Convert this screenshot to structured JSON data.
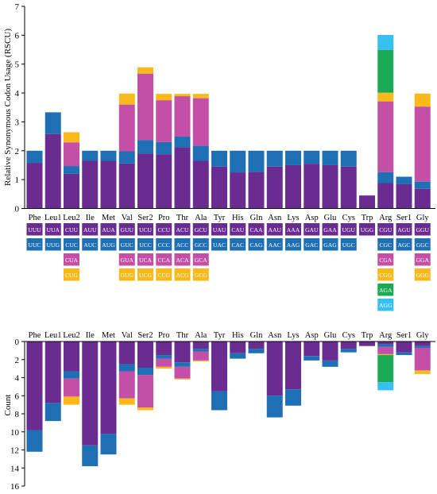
{
  "colors": {
    "c1": "#6a2c91",
    "c2": "#1f6fb5",
    "c3": "#c44fa6",
    "c4": "#f9b91b",
    "c5": "#1aaa55",
    "c6": "#36bfef",
    "text_on_box": "#ffffff",
    "axis": "#000000"
  },
  "chart_data": [
    {
      "type": "bar",
      "stacked": true,
      "ylabel": "Relative Synonymous Codon Usage (RSCU)",
      "ylim": [
        0,
        7
      ],
      "yticks": [
        0,
        1,
        2,
        3,
        4,
        5,
        6,
        7
      ],
      "categories": [
        "Phe",
        "Leu1",
        "Leu2",
        "Ile",
        "Met",
        "Val",
        "Ser2",
        "Pro",
        "Thr",
        "Ala",
        "Tyr",
        "His",
        "Gln",
        "Asn",
        "Lys",
        "Asp",
        "Glu",
        "Cys",
        "Trp",
        "Arg",
        "Ser1",
        "Gly"
      ],
      "series": [
        {
          "values": [
            1.58,
            2.58,
            1.2,
            1.65,
            1.65,
            1.56,
            1.9,
            1.88,
            2.12,
            1.65,
            1.45,
            1.25,
            1.27,
            1.45,
            1.5,
            1.55,
            1.5,
            1.45,
            0.45,
            0.88,
            0.85,
            0.68
          ]
        },
        {
          "values": [
            0.42,
            0.75,
            0.27,
            0.35,
            0.35,
            0.42,
            0.47,
            0.42,
            0.37,
            0.52,
            0.55,
            0.75,
            0.73,
            0.55,
            0.5,
            0.45,
            0.5,
            0.55,
            0,
            0.38,
            0.25,
            0.25
          ]
        },
        {
          "values": [
            0,
            0,
            0.82,
            0,
            0,
            1.62,
            2.3,
            1.45,
            1.4,
            1.65,
            0,
            0,
            0,
            0,
            0,
            0,
            0,
            0,
            0,
            2.45,
            0,
            2.6
          ]
        },
        {
          "values": [
            0,
            0,
            0.35,
            0,
            0,
            0.38,
            0.22,
            0.22,
            0.08,
            0.15,
            0,
            0,
            0,
            0,
            0,
            0,
            0,
            0,
            0,
            0.3,
            0,
            0.45
          ]
        },
        {
          "values": [
            0,
            0,
            0,
            0,
            0,
            0,
            0,
            0,
            0,
            0,
            0,
            0,
            0,
            0,
            0,
            0,
            0,
            0,
            0,
            1.48,
            0,
            0
          ]
        },
        {
          "values": [
            0,
            0,
            0,
            0,
            0,
            0,
            0,
            0,
            0,
            0,
            0,
            0,
            0,
            0,
            0,
            0,
            0,
            0,
            0,
            0.52,
            0,
            0
          ]
        }
      ]
    },
    {
      "type": "bar",
      "stacked": true,
      "inverted_y": true,
      "ylabel": "Count",
      "ylim": [
        0,
        16
      ],
      "yticks": [
        0,
        2,
        4,
        6,
        8,
        10,
        12,
        14,
        16
      ],
      "categories": [
        "Phe",
        "Leu1",
        "Leu2",
        "Ile",
        "Met",
        "Val",
        "Ser2",
        "Pro",
        "Thr",
        "Ala",
        "Tyr",
        "His",
        "Gln",
        "Asn",
        "Lys",
        "Asp",
        "Glu",
        "Cys",
        "Trp",
        "Arg",
        "Ser1",
        "Gly"
      ],
      "series": [
        {
          "values": [
            9.8,
            6.8,
            3.3,
            11.5,
            10.2,
            2.5,
            2.9,
            1.5,
            2.3,
            0.8,
            5.5,
            1.3,
            0.8,
            6.0,
            5.3,
            1.6,
            2.1,
            0.8,
            0.5,
            0.3,
            1.2,
            0.5
          ]
        },
        {
          "values": [
            2.4,
            2.0,
            0.8,
            2.3,
            2.3,
            0.8,
            0.8,
            0.4,
            0.5,
            0.3,
            2.1,
            0.6,
            0.5,
            2.4,
            1.8,
            0.5,
            0.7,
            0.4,
            0,
            0.3,
            0.3,
            0.2
          ]
        },
        {
          "values": [
            0,
            0,
            2.0,
            0,
            0,
            3.0,
            3.6,
            0.9,
            1.3,
            1.0,
            0,
            0,
            0,
            0,
            0,
            0,
            0,
            0,
            0,
            0.8,
            0,
            2.5
          ]
        },
        {
          "values": [
            0,
            0,
            0.9,
            0,
            0,
            0.7,
            0.3,
            0.2,
            0.1,
            0.1,
            0,
            0,
            0,
            0,
            0,
            0,
            0,
            0,
            0,
            0.1,
            0,
            0.4
          ]
        },
        {
          "values": [
            0,
            0,
            0,
            0,
            0,
            0,
            0,
            0,
            0,
            0,
            0,
            0,
            0,
            0,
            0,
            0,
            0,
            0,
            0,
            3.0,
            0,
            0
          ]
        },
        {
          "values": [
            0,
            0,
            0,
            0,
            0,
            0,
            0,
            0,
            0,
            0,
            0,
            0,
            0,
            0,
            0,
            0,
            0,
            0,
            0,
            0.9,
            0,
            0
          ]
        }
      ]
    }
  ],
  "codon_table": [
    {
      "aa": "Phe",
      "codons": [
        "UUU",
        "UUC"
      ]
    },
    {
      "aa": "Leu1",
      "codons": [
        "UUA",
        "UUG"
      ]
    },
    {
      "aa": "Leu2",
      "codons": [
        "CUU",
        "CUC",
        "CUA",
        "CUG"
      ]
    },
    {
      "aa": "Ile",
      "codons": [
        "AUU",
        "AUC"
      ]
    },
    {
      "aa": "Met",
      "codons": [
        "AUA",
        "AUG"
      ]
    },
    {
      "aa": "Val",
      "codons": [
        "GUU",
        "GUC",
        "GUA",
        "GUG"
      ]
    },
    {
      "aa": "Ser2",
      "codons": [
        "UCU",
        "UCC",
        "UCA",
        "UCG"
      ]
    },
    {
      "aa": "Pro",
      "codons": [
        "CCU",
        "CCC",
        "CCA",
        "CCG"
      ]
    },
    {
      "aa": "Thr",
      "codons": [
        "ACU",
        "ACC",
        "ACA",
        "ACG"
      ]
    },
    {
      "aa": "Ala",
      "codons": [
        "GCU",
        "GCC",
        "GCA",
        "GCG"
      ]
    },
    {
      "aa": "Tyr",
      "codons": [
        "UAU",
        "UAC"
      ]
    },
    {
      "aa": "His",
      "codons": [
        "CAU",
        "CAC"
      ]
    },
    {
      "aa": "Gln",
      "codons": [
        "CAA",
        "CAG"
      ]
    },
    {
      "aa": "Asn",
      "codons": [
        "AAU",
        "AAC"
      ]
    },
    {
      "aa": "Lys",
      "codons": [
        "AAA",
        "AAG"
      ]
    },
    {
      "aa": "Asp",
      "codons": [
        "GAU",
        "GAC"
      ]
    },
    {
      "aa": "Glu",
      "codons": [
        "GAA",
        "GAG"
      ]
    },
    {
      "aa": "Cys",
      "codons": [
        "UGU",
        "UGC"
      ]
    },
    {
      "aa": "Trp",
      "codons": [
        "UGG"
      ]
    },
    {
      "aa": "Arg",
      "codons": [
        "CGU",
        "CGC",
        "CGA",
        "CGG",
        "AGA",
        "AGG"
      ]
    },
    {
      "aa": "Ser1",
      "codons": [
        "AGU",
        "AGC"
      ]
    },
    {
      "aa": "Gly",
      "codons": [
        "GGU",
        "GGC",
        "GGA",
        "GGG"
      ]
    }
  ]
}
